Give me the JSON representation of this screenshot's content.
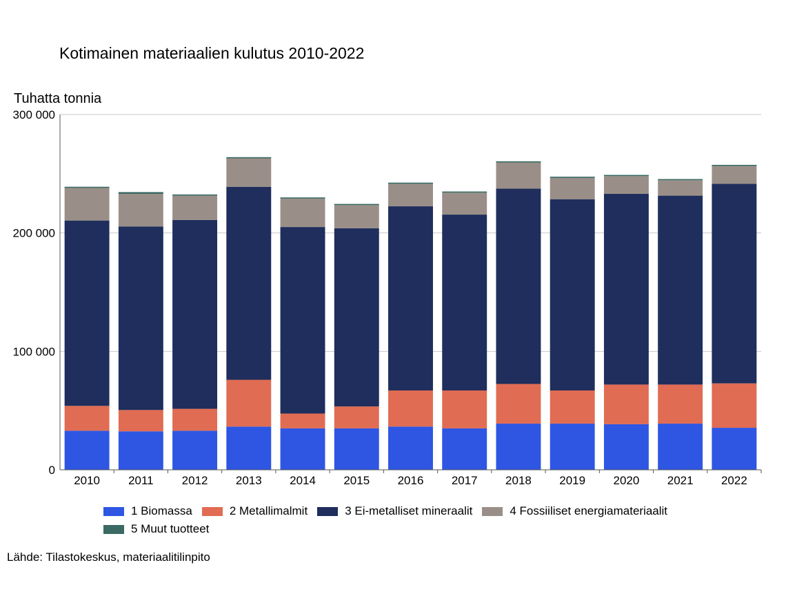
{
  "chart_data": {
    "type": "bar",
    "stacked": true,
    "title": "Kotimainen materiaalien kulutus 2010-2022",
    "ylabel": "Tuhatta tonnia",
    "ylim": [
      0,
      300000
    ],
    "y_ticks": [
      0,
      100000,
      200000,
      300000
    ],
    "y_tick_labels": [
      "0",
      "100 000",
      "200 000",
      "300 000"
    ],
    "grid": true,
    "legend_position": "bottom",
    "categories": [
      "2010",
      "2011",
      "2012",
      "2013",
      "2014",
      "2015",
      "2016",
      "2017",
      "2018",
      "2019",
      "2020",
      "2021",
      "2022"
    ],
    "series": [
      {
        "name": "1 Biomassa",
        "color": "#2e56e3",
        "values": [
          33000,
          32500,
          33000,
          36500,
          35000,
          35000,
          36500,
          35000,
          39000,
          39000,
          38500,
          39000,
          35500
        ]
      },
      {
        "name": "2 Metallimalmit",
        "color": "#e06c53",
        "values": [
          21000,
          18000,
          18500,
          39500,
          12500,
          18500,
          30500,
          32000,
          33500,
          28000,
          33500,
          33000,
          37500
        ]
      },
      {
        "name": "3 Ei-metalliset mineraalit",
        "color": "#1f2e5c",
        "values": [
          156500,
          155000,
          159500,
          163000,
          157500,
          150500,
          155500,
          148500,
          165000,
          161500,
          161000,
          159500,
          168500
        ]
      },
      {
        "name": "4 Fossiiliset energiamateriaalit",
        "color": "#9a8f88",
        "values": [
          27500,
          27500,
          20500,
          24000,
          24000,
          19500,
          19000,
          18500,
          22000,
          18000,
          15000,
          13000,
          15000
        ]
      },
      {
        "name": "5 Muut tuotteet",
        "color": "#3a6a63",
        "values": [
          1000,
          1500,
          1000,
          1000,
          1000,
          1000,
          1000,
          1000,
          1000,
          1000,
          1000,
          1000,
          1000
        ]
      }
    ]
  },
  "source": "Lähde: Tilastokeskus, materiaalitilinpito"
}
